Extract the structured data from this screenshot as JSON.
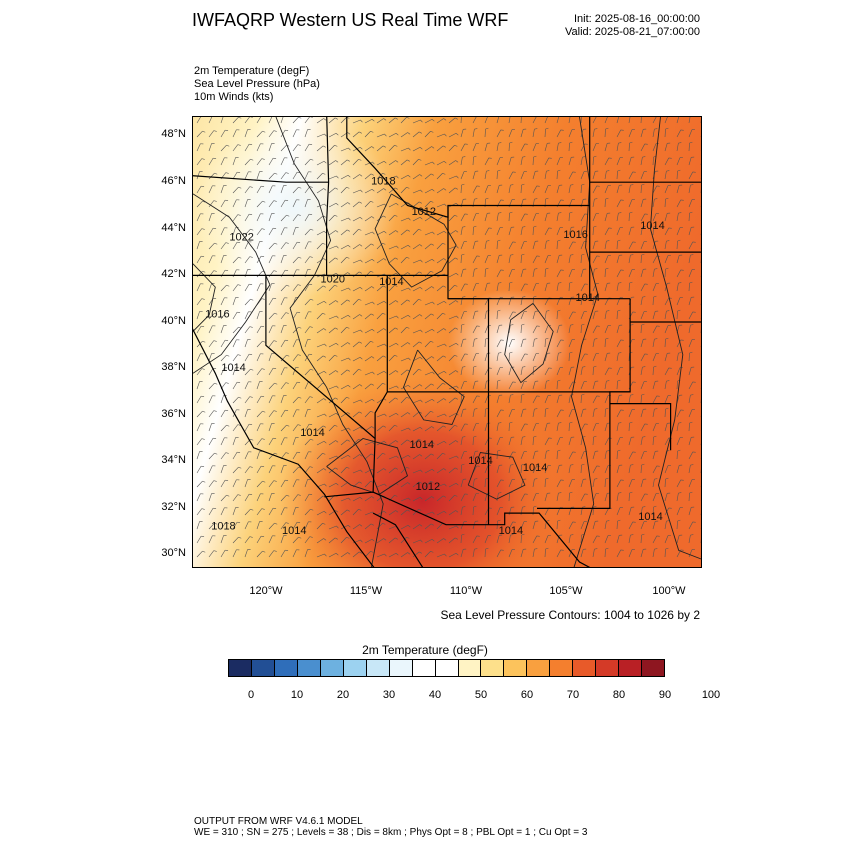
{
  "header": {
    "title": "IWFAQRP Western US Real Time WRF",
    "init": "Init: 2025-08-16_00:00:00",
    "valid": "Valid: 2025-08-21_07:00:00"
  },
  "fields": [
    "2m Temperature   (degF)",
    "Sea Level Pressure   (hPa)",
    "10m Winds   (kts)"
  ],
  "map": {
    "region": "Western United States",
    "lat_labels": [
      "48°N",
      "46°N",
      "44°N",
      "42°N",
      "40°N",
      "38°N",
      "36°N",
      "34°N",
      "32°N",
      "30°N"
    ],
    "lon_labels": [
      "120°W",
      "115°W",
      "110°W",
      "105°W",
      "100°W"
    ],
    "lat_range": [
      29.4,
      48.8
    ],
    "lon_range": [
      -123.6,
      -98.4
    ],
    "pressure_labels": [
      {
        "text": "1018",
        "lat": 45.9,
        "lon": -114.8
      },
      {
        "text": "1012",
        "lat": 44.6,
        "lon": -112.8
      },
      {
        "text": "1014",
        "lat": 44.0,
        "lon": -101.5
      },
      {
        "text": "1016",
        "lat": 43.6,
        "lon": -105.3
      },
      {
        "text": "1022",
        "lat": 43.5,
        "lon": -121.8
      },
      {
        "text": "1020",
        "lat": 41.7,
        "lon": -117.3
      },
      {
        "text": "1014",
        "lat": 41.6,
        "lon": -114.4
      },
      {
        "text": "1014",
        "lat": 40.9,
        "lon": -104.7
      },
      {
        "text": "1016",
        "lat": 40.2,
        "lon": -123.0
      },
      {
        "text": "1014",
        "lat": 37.9,
        "lon": -122.2
      },
      {
        "text": "1014",
        "lat": 35.1,
        "lon": -118.3
      },
      {
        "text": "1014",
        "lat": 34.6,
        "lon": -112.9
      },
      {
        "text": "1014",
        "lat": 33.9,
        "lon": -110.0
      },
      {
        "text": "1014",
        "lat": 33.6,
        "lon": -107.3
      },
      {
        "text": "1012",
        "lat": 32.8,
        "lon": -112.6
      },
      {
        "text": "1014",
        "lat": 31.5,
        "lon": -101.6
      },
      {
        "text": "1018",
        "lat": 31.1,
        "lon": -122.7
      },
      {
        "text": "1014",
        "lat": 30.9,
        "lon": -119.2
      },
      {
        "text": "1014",
        "lat": 30.9,
        "lon": -108.5
      }
    ]
  },
  "contour_note": "Sea Level Pressure Contours: 1004 to 1026 by 2",
  "colorbar": {
    "title": "2m Temperature  (degF)",
    "colors": [
      "#1b2c62",
      "#224f95",
      "#2f6eba",
      "#4a8fcf",
      "#6db1e0",
      "#9cd2f0",
      "#c8e7f7",
      "#eaf6fc",
      "#ffffff",
      "#ffffff",
      "#fff3c4",
      "#fde08b",
      "#fcc35c",
      "#f9a03f",
      "#f47f2e",
      "#e85a29",
      "#d43a27",
      "#b92025",
      "#8e1620"
    ],
    "ticks": [
      "0",
      "10",
      "20",
      "30",
      "40",
      "50",
      "60",
      "70",
      "80",
      "90",
      "100"
    ]
  },
  "footer": {
    "line1": "OUTPUT FROM WRF V4.6.1 MODEL",
    "line2": "WE = 310 ; SN = 275 ; Levels = 38 ; Dis = 8km ; Phys Opt = 8 ; PBL Opt = 1 ; Cu Opt = 3"
  }
}
